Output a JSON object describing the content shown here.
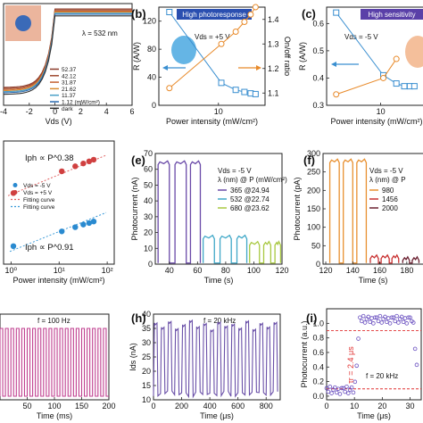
{
  "chart_data": [
    {
      "panel": "a",
      "type": "line",
      "title": "",
      "xlabel": "Vds (V)",
      "ylabel": "",
      "xlim": [
        -4,
        6
      ],
      "x_ticks": [
        "-4",
        "-2",
        "0",
        "2",
        "4",
        "6"
      ],
      "annotations": [
        "λ = 532 nm"
      ],
      "series": [
        {
          "name": "52.37",
          "color": "#8b3a2a",
          "x": [
            -4,
            -1,
            0,
            1,
            4
          ],
          "y": [
            -0.8,
            -0.6,
            0,
            0.6,
            0.8
          ]
        },
        {
          "name": "42.12",
          "color": "#a04a30",
          "x": [
            -4,
            -1,
            0,
            1,
            4
          ],
          "y": [
            -0.7,
            -0.55,
            0,
            0.55,
            0.7
          ]
        },
        {
          "name": "31.87",
          "color": "#c46030",
          "x": [
            -4,
            -1,
            0,
            1,
            4
          ],
          "y": [
            -0.6,
            -0.5,
            0,
            0.5,
            0.6
          ]
        },
        {
          "name": "21.62",
          "color": "#d98c30",
          "x": [
            -4,
            -1,
            0,
            1,
            4
          ],
          "y": [
            -0.5,
            -0.4,
            0,
            0.4,
            0.5
          ]
        },
        {
          "name": "11.37",
          "color": "#4aa0c8",
          "x": [
            -4,
            -1,
            0,
            1,
            4
          ],
          "y": [
            -0.4,
            -0.3,
            0,
            0.3,
            0.4
          ]
        },
        {
          "name": "1.12 (mW/cm²)",
          "color": "#2a6ab0",
          "x": [
            -4,
            -1,
            0,
            1,
            4
          ],
          "y": [
            -0.3,
            -0.2,
            0,
            0.2,
            0.3
          ]
        },
        {
          "name": "dark",
          "color": "#333333",
          "x": [
            -4,
            -1,
            0,
            1,
            4
          ],
          "y": [
            -0.2,
            -0.1,
            0,
            0.1,
            0.2
          ]
        }
      ]
    },
    {
      "panel": "b",
      "type": "line",
      "tag": "High photoresponse",
      "annotation": "Vds = +5 V",
      "xlabel": "Power intensity (mW/cm²)",
      "ylabel": "R (A/W)",
      "y2label": "On/off ratio",
      "x_scale": "log",
      "x_ticks": [
        "10",
        "100"
      ],
      "y_ticks": [
        "0",
        "40",
        "80",
        "120"
      ],
      "y2_ticks": [
        "1.1",
        "1.2",
        "1.3",
        "1.4"
      ],
      "ylim": [
        0,
        140
      ],
      "y2lim": [
        1.05,
        1.45
      ],
      "series": [
        {
          "name": "R",
          "color": "#3a8fd0",
          "axis": "left",
          "x": [
            1.12,
            11.37,
            21.62,
            31.87,
            42.12,
            52.37
          ],
          "y": [
            133,
            32,
            22,
            19,
            17,
            16
          ]
        },
        {
          "name": "On/off ratio",
          "color": "#e88a2a",
          "axis": "right",
          "x": [
            1.12,
            11.37,
            21.62,
            31.87,
            42.12,
            52.37
          ],
          "y": [
            1.12,
            1.3,
            1.35,
            1.39,
            1.42,
            1.45
          ]
        }
      ]
    },
    {
      "panel": "c",
      "type": "line",
      "tag": "High sensitivity",
      "annotation": "Vds = -5 V",
      "xlabel": "Power intensity (mW/cm²)",
      "ylabel": "R (A/W)",
      "x_scale": "log",
      "x_ticks": [
        "10",
        "100"
      ],
      "y_ticks": [
        "0.3",
        "0.4",
        "0.5",
        "0.6"
      ],
      "ylim": [
        0.3,
        0.66
      ],
      "series": [
        {
          "name": "R",
          "color": "#3a8fd0",
          "x": [
            1.12,
            11.37,
            21.62,
            31.87,
            42.12,
            52.37
          ],
          "y": [
            0.64,
            0.41,
            0.38,
            0.37,
            0.37,
            0.37
          ]
        },
        {
          "name": "On/off ratio",
          "color": "#e88a2a",
          "x": [
            1.12,
            11.37,
            21.62
          ],
          "y": [
            0.34,
            0.4,
            0.47
          ]
        }
      ]
    },
    {
      "panel": "d",
      "type": "scatter",
      "xlabel": "Power intensity (mW/cm²)",
      "x_scale": "log",
      "x_ticks": [
        "10⁰",
        "10¹",
        "10²"
      ],
      "legend": [
        "Vds = -5 V",
        "Vds = +5 V",
        "Fitting curve",
        "Fitting curve"
      ],
      "annotations": [
        "Iph ∝ P^0.38",
        "Iph ∝ P^0.91"
      ],
      "series": [
        {
          "name": "Vds = +5 V",
          "color": "#d04040",
          "x": [
            1.12,
            11.37,
            21.62,
            31.87,
            42.12,
            52.37
          ],
          "y": [
            30,
            70,
            85,
            95,
            103,
            110
          ]
        },
        {
          "name": "Vds = -5 V",
          "color": "#2a8ad0",
          "x": [
            1.12,
            11.37,
            21.62,
            31.87,
            42.12,
            52.37
          ],
          "y": [
            0.4,
            3.5,
            6.5,
            9.5,
            12,
            15
          ]
        }
      ]
    },
    {
      "panel": "e",
      "type": "line",
      "xlabel": "Time (s)",
      "ylabel": "Photocurrent (nA)",
      "x_ticks": [
        "40",
        "60",
        "80",
        "100",
        "120"
      ],
      "y_ticks": [
        "0",
        "10",
        "20",
        "30",
        "40",
        "50",
        "60",
        "70"
      ],
      "ylim": [
        0,
        70
      ],
      "xlim": [
        30,
        120
      ],
      "annotations": [
        "Vds = -5 V",
        "λ (nm) @ P (mW/cm²)"
      ],
      "series": [
        {
          "name": "365 @24.94",
          "color": "#6a4aa8",
          "on_level": 63,
          "periods": [
            [
              32,
              40
            ],
            [
              44,
              52
            ],
            [
              55,
              62
            ]
          ]
        },
        {
          "name": "532 @22.74",
          "color": "#40a8c8",
          "on_level": 16,
          "periods": [
            [
              64,
              72
            ],
            [
              76,
              84
            ],
            [
              88,
              95
            ]
          ]
        },
        {
          "name": "680 @23.62",
          "color": "#a8c840",
          "on_level": 12,
          "periods": [
            [
              97,
              104
            ],
            [
              107,
              112
            ],
            [
              115,
              119
            ]
          ]
        }
      ]
    },
    {
      "panel": "f",
      "type": "line",
      "xlabel": "Time (s)",
      "ylabel": "Photocurrent (pA)",
      "x_ticks": [
        "120",
        "140",
        "160",
        "180"
      ],
      "y_ticks": [
        "0",
        "50",
        "100",
        "150",
        "200",
        "250",
        "300"
      ],
      "ylim": [
        0,
        300
      ],
      "xlim": [
        118,
        192
      ],
      "annotations": [
        "Vds = -5 V",
        "λ (nm) @ P"
      ],
      "series": [
        {
          "name": "980",
          "color": "#e89030",
          "on_level": 275,
          "periods": [
            [
              123,
              130
            ],
            [
              133,
              140
            ],
            [
              143,
              150
            ]
          ]
        },
        {
          "name": "1456",
          "color": "#c83030",
          "on_level": 15,
          "periods": [
            [
              153,
              159
            ],
            [
              161,
              167
            ],
            [
              169,
              174
            ]
          ]
        },
        {
          "name": "2000",
          "color": "#6a2030",
          "on_level": 10,
          "periods": [
            [
              177,
              182
            ],
            [
              184,
              189
            ]
          ]
        }
      ]
    },
    {
      "panel": "g",
      "type": "line",
      "annotation": "f = 100 Hz",
      "xlabel": "Time (ms)",
      "x_ticks": [
        "50",
        "100",
        "150",
        "200"
      ],
      "xlim": [
        0,
        200
      ],
      "series": [
        {
          "name": "100 Hz",
          "color": "#c04090",
          "frequency_hz": 100,
          "cycles": 20
        }
      ]
    },
    {
      "panel": "h",
      "type": "line",
      "annotation": "f = 20 kHz",
      "xlabel": "Time (μs)",
      "ylabel": "Ids (nA)",
      "x_ticks": [
        "0",
        "200",
        "400",
        "600",
        "800"
      ],
      "y_ticks": [
        "10",
        "15",
        "20",
        "25",
        "30",
        "35",
        "40"
      ],
      "ylim": [
        10,
        40
      ],
      "xlim": [
        0,
        900
      ],
      "series": [
        {
          "name": "20 kHz",
          "color": "#6a50a8",
          "high": 36,
          "low": 12,
          "cycles": 18
        }
      ]
    },
    {
      "panel": "i",
      "type": "scatter",
      "annotation": "f = 20 kHz",
      "rise_time_label": "τr = 2.4 μs",
      "xlabel": "Time (μs)",
      "ylabel": "Photocurrent (a.u.)",
      "x_ticks": [
        "0",
        "10",
        "20",
        "30"
      ],
      "y_ticks": [
        "0.0",
        "0.2",
        "0.4",
        "0.6",
        "0.8",
        "1.0"
      ],
      "xlim": [
        0,
        34
      ],
      "ylim": [
        -0.05,
        1.2
      ],
      "ref_lines": [
        0.1,
        0.9
      ],
      "series": [
        {
          "name": "Photocurrent",
          "color": "#6a50c0"
        }
      ]
    }
  ]
}
